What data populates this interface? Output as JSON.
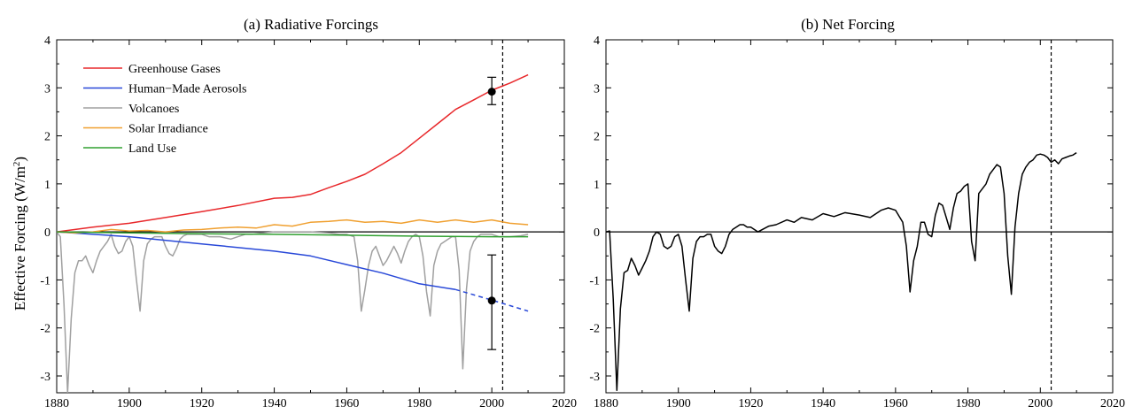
{
  "figure": {
    "ylabel_text": "Effective Forcing (W/m",
    "ylabel_sup": "2",
    "ylabel_close": ")"
  },
  "chart_data": [
    {
      "type": "line",
      "title": "(a)  Radiative Forcings",
      "xlabel": "",
      "ylabel": "Effective Forcing (W/m2)",
      "xlim": [
        1880,
        2020
      ],
      "ylim": [
        -3.35,
        4
      ],
      "xticks": [
        1880,
        1900,
        1920,
        1940,
        1960,
        1980,
        2000,
        2020
      ],
      "yticks": [
        -3,
        -2,
        -1,
        0,
        1,
        2,
        3,
        4
      ],
      "legend": "top-left",
      "series": [
        {
          "name": "Greenhouse Gases",
          "color": "#e8282b",
          "x": [
            1880,
            1890,
            1900,
            1910,
            1920,
            1930,
            1940,
            1945,
            1950,
            1955,
            1960,
            1965,
            1970,
            1975,
            1980,
            1985,
            1990,
            1995,
            2000,
            2005,
            2010
          ],
          "y": [
            0.0,
            0.1,
            0.18,
            0.3,
            0.42,
            0.55,
            0.7,
            0.72,
            0.78,
            0.92,
            1.05,
            1.2,
            1.42,
            1.65,
            1.95,
            2.25,
            2.55,
            2.75,
            2.95,
            3.1,
            3.27
          ]
        },
        {
          "name": "Human−Made Aerosols",
          "color": "#2848d8",
          "x": [
            1880,
            1900,
            1920,
            1940,
            1950,
            1960,
            1970,
            1980,
            1990
          ],
          "y": [
            0.0,
            -0.1,
            -0.25,
            -0.4,
            -0.5,
            -0.68,
            -0.86,
            -1.08,
            -1.2
          ],
          "projection": {
            "x": [
              1990,
              2000,
              2010
            ],
            "y": [
              -1.2,
              -1.42,
              -1.65
            ]
          }
        },
        {
          "name": "Volcanoes",
          "color": "#a0a0a0",
          "x": [
            1880,
            1881,
            1882,
            1883,
            1884,
            1885,
            1886,
            1887,
            1888,
            1889,
            1890,
            1891,
            1892,
            1893,
            1894,
            1895,
            1896,
            1897,
            1898,
            1899,
            1900,
            1901,
            1902,
            1903,
            1904,
            1905,
            1906,
            1907,
            1908,
            1909,
            1910,
            1911,
            1912,
            1913,
            1914,
            1915,
            1916,
            1917,
            1918,
            1919,
            1920,
            1922,
            1925,
            1928,
            1930,
            1932,
            1934,
            1937,
            1940,
            1945,
            1950,
            1955,
            1958,
            1960,
            1962,
            1963,
            1964,
            1965,
            1966,
            1967,
            1968,
            1969,
            1970,
            1971,
            1972,
            1973,
            1974,
            1975,
            1976,
            1977,
            1978,
            1979,
            1980,
            1981,
            1982,
            1983,
            1984,
            1985,
            1986,
            1987,
            1988,
            1989,
            1990,
            1991,
            1992,
            1993,
            1994,
            1995,
            1996,
            1997,
            1998,
            2000,
            2002,
            2005,
            2008,
            2010
          ],
          "y": [
            0.0,
            -0.1,
            -1.5,
            -3.35,
            -1.8,
            -0.85,
            -0.6,
            -0.6,
            -0.5,
            -0.7,
            -0.85,
            -0.6,
            -0.4,
            -0.3,
            -0.2,
            -0.05,
            -0.3,
            -0.45,
            -0.4,
            -0.2,
            -0.1,
            -0.3,
            -1.0,
            -1.65,
            -0.6,
            -0.25,
            -0.15,
            -0.1,
            -0.1,
            -0.1,
            -0.3,
            -0.45,
            -0.5,
            -0.35,
            -0.15,
            -0.08,
            -0.05,
            -0.05,
            -0.05,
            -0.05,
            -0.05,
            -0.1,
            -0.1,
            -0.15,
            -0.1,
            -0.05,
            -0.05,
            -0.02,
            0.0,
            0.0,
            0.0,
            -0.02,
            -0.05,
            -0.05,
            -0.1,
            -0.6,
            -1.65,
            -1.2,
            -0.7,
            -0.4,
            -0.3,
            -0.5,
            -0.7,
            -0.6,
            -0.45,
            -0.3,
            -0.45,
            -0.65,
            -0.4,
            -0.2,
            -0.1,
            -0.05,
            -0.1,
            -0.5,
            -1.25,
            -1.75,
            -0.7,
            -0.4,
            -0.25,
            -0.2,
            -0.15,
            -0.1,
            -0.1,
            -0.8,
            -2.85,
            -1.2,
            -0.4,
            -0.2,
            -0.1,
            -0.05,
            -0.05,
            -0.05,
            -0.1,
            -0.1,
            -0.08,
            -0.05
          ]
        },
        {
          "name": "Solar Irradiance",
          "color": "#f0a030",
          "x": [
            1880,
            1885,
            1890,
            1895,
            1900,
            1905,
            1910,
            1915,
            1920,
            1925,
            1930,
            1935,
            1940,
            1945,
            1950,
            1955,
            1960,
            1965,
            1970,
            1975,
            1980,
            1985,
            1990,
            1995,
            2000,
            2005,
            2010
          ],
          "y": [
            0.0,
            -0.02,
            0.0,
            0.05,
            0.02,
            0.03,
            0.0,
            0.04,
            0.05,
            0.08,
            0.1,
            0.08,
            0.15,
            0.12,
            0.2,
            0.22,
            0.25,
            0.2,
            0.22,
            0.18,
            0.25,
            0.2,
            0.25,
            0.2,
            0.25,
            0.18,
            0.15
          ]
        },
        {
          "name": "Land Use",
          "color": "#30a030",
          "x": [
            1880,
            1900,
            1920,
            1940,
            1960,
            1980,
            2000,
            2010
          ],
          "y": [
            0.0,
            -0.02,
            -0.04,
            -0.05,
            -0.07,
            -0.09,
            -0.1,
            -0.1
          ]
        }
      ],
      "error_bars": [
        {
          "x": 2000,
          "y": 2.92,
          "lower": 2.65,
          "upper": 3.22
        },
        {
          "x": 2000,
          "y": -1.43,
          "lower": -2.45,
          "upper": -0.48
        }
      ],
      "vline_x": 2003
    },
    {
      "type": "line",
      "title": "(b)  Net Forcing",
      "xlabel": "",
      "ylabel": "",
      "xlim": [
        1880,
        2020
      ],
      "ylim": [
        -3.35,
        4
      ],
      "xticks": [
        1880,
        1900,
        1920,
        1940,
        1960,
        1980,
        2000,
        2020
      ],
      "yticks": [
        -3,
        -2,
        -1,
        0,
        1,
        2,
        3,
        4
      ],
      "series": [
        {
          "name": "",
          "color": "#000000",
          "x": [
            1880,
            1881,
            1882,
            1883,
            1884,
            1885,
            1886,
            1887,
            1888,
            1889,
            1890,
            1891,
            1892,
            1893,
            1894,
            1895,
            1896,
            1897,
            1898,
            1899,
            1900,
            1901,
            1902,
            1903,
            1904,
            1905,
            1906,
            1907,
            1908,
            1909,
            1910,
            1911,
            1912,
            1913,
            1914,
            1915,
            1916,
            1917,
            1918,
            1919,
            1920,
            1922,
            1925,
            1927,
            1930,
            1932,
            1934,
            1937,
            1940,
            1943,
            1946,
            1950,
            1953,
            1956,
            1958,
            1960,
            1962,
            1963,
            1964,
            1965,
            1966,
            1967,
            1968,
            1969,
            1970,
            1971,
            1972,
            1973,
            1974,
            1975,
            1976,
            1977,
            1978,
            1979,
            1980,
            1981,
            1982,
            1983,
            1984,
            1985,
            1986,
            1987,
            1988,
            1989,
            1990,
            1991,
            1992,
            1993,
            1994,
            1995,
            1996,
            1997,
            1998,
            1999,
            2000,
            2001,
            2002,
            2003,
            2004,
            2005,
            2006,
            2007,
            2008,
            2009,
            2010
          ],
          "y": [
            0.0,
            0.02,
            -1.4,
            -3.3,
            -1.6,
            -0.85,
            -0.8,
            -0.55,
            -0.7,
            -0.9,
            -0.75,
            -0.6,
            -0.4,
            -0.1,
            0.0,
            -0.05,
            -0.3,
            -0.35,
            -0.3,
            -0.1,
            -0.05,
            -0.3,
            -1.0,
            -1.65,
            -0.55,
            -0.2,
            -0.1,
            -0.1,
            -0.05,
            -0.05,
            -0.3,
            -0.4,
            -0.45,
            -0.3,
            -0.05,
            0.05,
            0.1,
            0.15,
            0.15,
            0.1,
            0.1,
            0.0,
            0.12,
            0.15,
            0.25,
            0.2,
            0.3,
            0.25,
            0.38,
            0.32,
            0.4,
            0.35,
            0.3,
            0.45,
            0.5,
            0.45,
            0.2,
            -0.3,
            -1.25,
            -0.6,
            -0.3,
            0.2,
            0.2,
            -0.05,
            -0.1,
            0.35,
            0.6,
            0.55,
            0.3,
            0.05,
            0.5,
            0.8,
            0.85,
            0.95,
            1.0,
            -0.2,
            -0.6,
            0.8,
            0.9,
            1.0,
            1.2,
            1.3,
            1.4,
            1.35,
            0.8,
            -0.5,
            -1.3,
            0.1,
            0.8,
            1.2,
            1.35,
            1.45,
            1.5,
            1.6,
            1.62,
            1.6,
            1.55,
            1.45,
            1.5,
            1.42,
            1.52,
            1.55,
            1.58,
            1.6,
            1.65
          ]
        }
      ],
      "vline_x": 2003
    }
  ]
}
